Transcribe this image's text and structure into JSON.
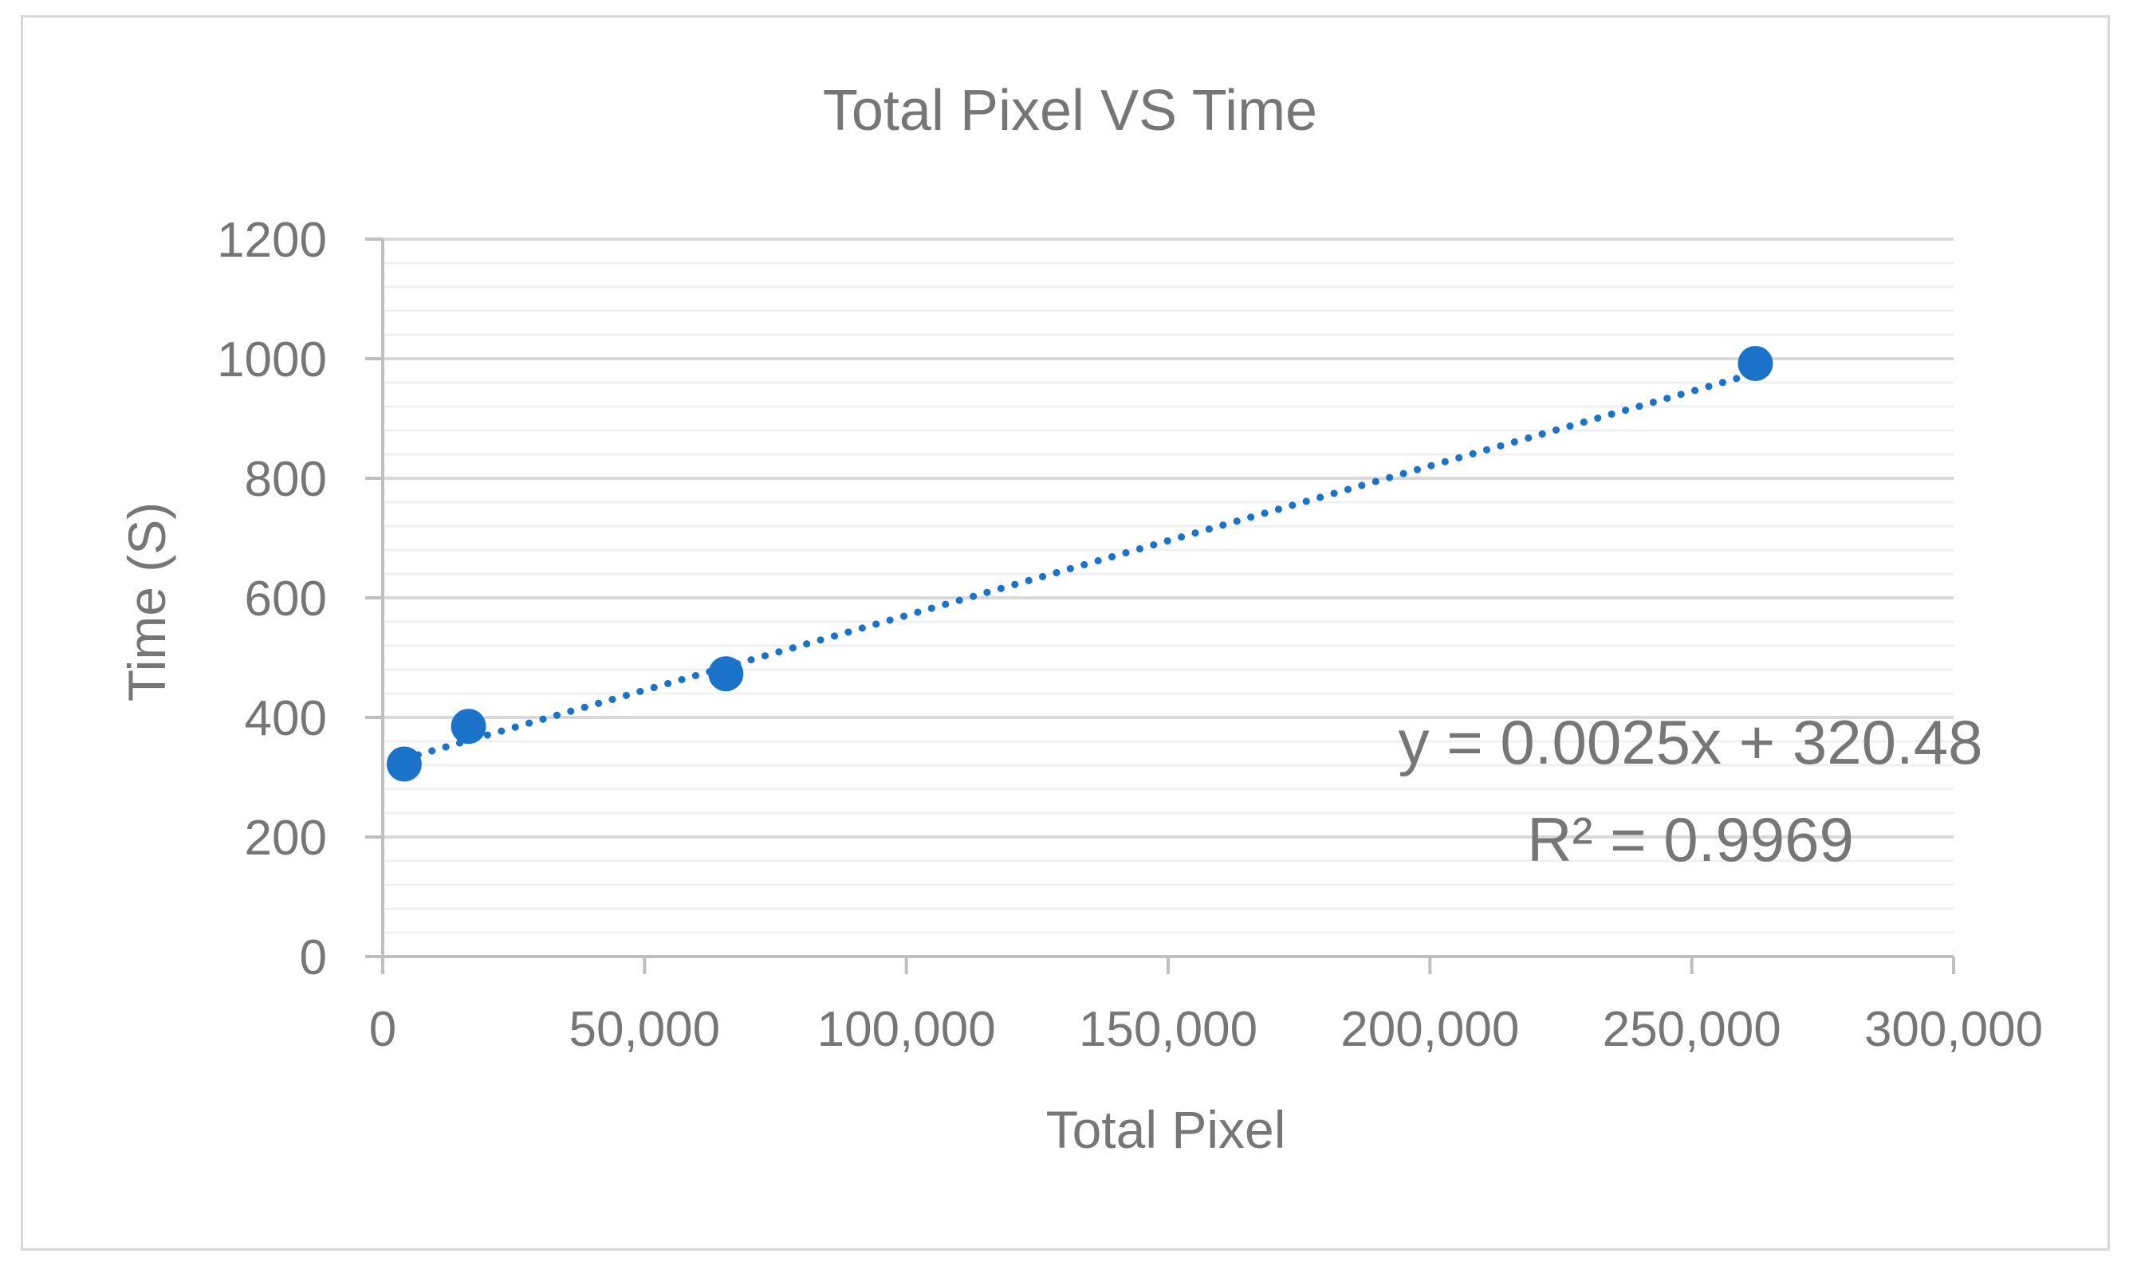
{
  "chart_data": {
    "type": "scatter",
    "title": "Total  Pixel  VS Time",
    "xlabel": "Total Pixel",
    "ylabel": "Time (S)",
    "xlim": [
      0,
      300000
    ],
    "ylim": [
      0,
      1200
    ],
    "x_ticks": [
      0,
      50000,
      100000,
      150000,
      200000,
      250000,
      300000
    ],
    "x_tick_labels": [
      "0",
      "50,000",
      "100,000",
      "150,000",
      "200,000",
      "250,000",
      "300,000"
    ],
    "y_ticks": [
      0,
      200,
      400,
      600,
      800,
      1000,
      1200
    ],
    "y_tick_labels": [
      "0",
      "200",
      "400",
      "600",
      "800",
      "1000",
      "1200"
    ],
    "y_minor_step": 40,
    "series": [
      {
        "name": "Time",
        "color": "#1a73c8",
        "x": [
          4096,
          16384,
          65536,
          262144
        ],
        "y": [
          322,
          385,
          473,
          992
        ]
      }
    ],
    "trendline": {
      "type": "linear",
      "slope": 0.0025,
      "intercept": 320.48,
      "color": "#1a73c8",
      "equation": "y = 0.0025x + 320.48",
      "r_squared": "R² = 0.9969"
    },
    "grid": true
  }
}
